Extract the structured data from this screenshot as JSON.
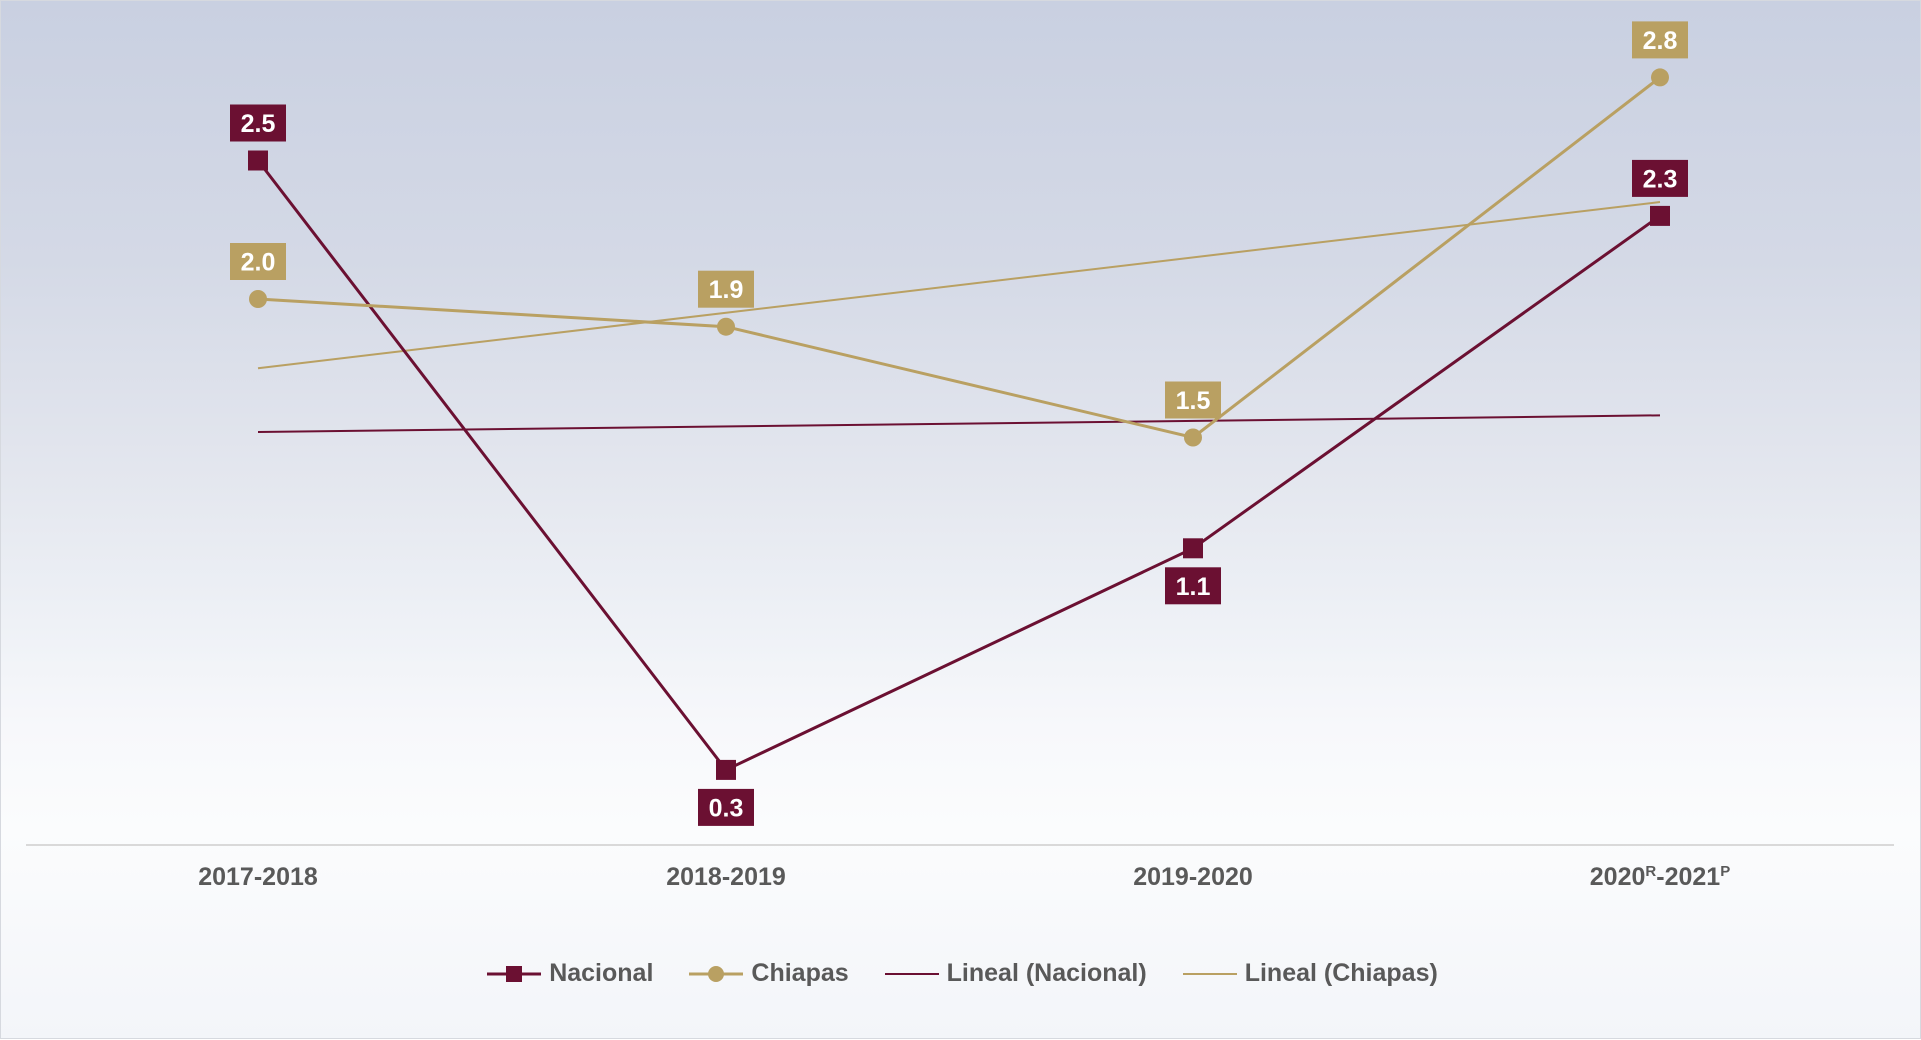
{
  "chart_data": {
    "type": "line",
    "categories": [
      "2017-2018",
      "2018-2019",
      "2019-2020",
      "2020R-2021P"
    ],
    "category_labels": [
      {
        "base": "2017-2018",
        "sup1": "",
        "mid": "",
        "sup2": ""
      },
      {
        "base": "2018-2019",
        "sup1": "",
        "mid": "",
        "sup2": ""
      },
      {
        "base": "2019-2020",
        "sup1": "",
        "mid": "",
        "sup2": ""
      },
      {
        "base": "2020",
        "sup1": "R",
        "mid": "-2021",
        "sup2": "P"
      }
    ],
    "series": [
      {
        "name": "Nacional",
        "values": [
          2.5,
          0.3,
          1.1,
          2.3
        ],
        "labels": [
          "2.5",
          "0.3",
          "1.1",
          "2.3"
        ],
        "color": "#6b1032",
        "marker": "square",
        "label_positions": [
          "above",
          "below",
          "below",
          "above"
        ]
      },
      {
        "name": "Chiapas",
        "values": [
          2.0,
          1.9,
          1.5,
          2.8
        ],
        "labels": [
          "2.0",
          "1.9",
          "1.5",
          "2.8"
        ],
        "color": "#b9a062",
        "marker": "circle",
        "label_positions": [
          "above",
          "above",
          "above",
          "above"
        ]
      }
    ],
    "trendlines": [
      {
        "name": "Lineal (Nacional)",
        "series": "Nacional",
        "color": "#6b1032"
      },
      {
        "name": "Lineal (Chiapas)",
        "series": "Chiapas",
        "color": "#b9a062"
      }
    ],
    "ylim": [
      0,
      3
    ],
    "grid": false,
    "legend_position": "bottom",
    "title": "",
    "xlabel": "",
    "ylabel": ""
  }
}
